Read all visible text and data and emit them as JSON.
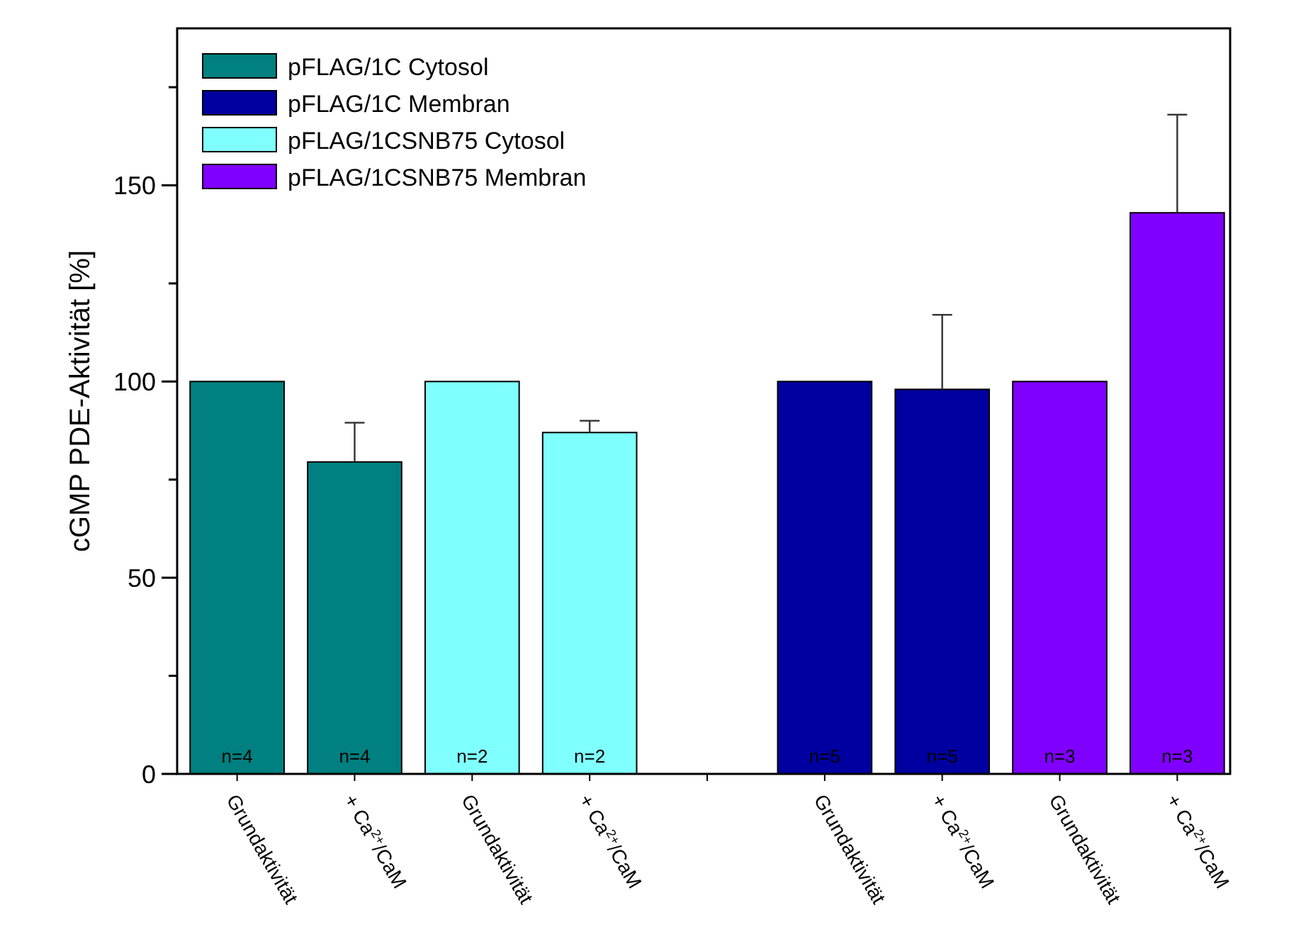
{
  "chart_data": {
    "type": "bar",
    "ylabel": "cGMP PDE-Aktivität [%]",
    "categories": [
      "Grundaktivität",
      "+ Ca$^{2+}$/CaM",
      "Grundaktivität",
      "+ Ca$^{2+}$/CaM",
      null,
      "Grundaktivität",
      "+ Ca$^{2+}$/CaM",
      "Grundaktivität",
      "+ Ca$^{2+}$/CaM"
    ],
    "series": [
      {
        "name": "pFLAG/1C Cytosol",
        "color": "#008080",
        "values": [
          100,
          79.5,
          null,
          null,
          null,
          null,
          null,
          null,
          null
        ],
        "errors": [
          null,
          [
            79.5,
            89.5
          ],
          null,
          null,
          null,
          null,
          null,
          null,
          null
        ]
      },
      {
        "name": "pFLAG/1C Membran",
        "color": "#0000a0",
        "values": [
          null,
          null,
          null,
          null,
          null,
          100,
          98,
          null,
          null
        ],
        "errors": [
          null,
          null,
          null,
          null,
          null,
          null,
          [
            98,
            117
          ],
          null,
          null
        ]
      },
      {
        "name": "pFLAG/1CSNB75 Cytosol",
        "color": "#80ffff",
        "values": [
          null,
          null,
          100,
          87,
          null,
          null,
          null,
          null,
          null
        ],
        "errors": [
          null,
          null,
          null,
          [
            87,
            90
          ],
          null,
          null,
          null,
          null,
          null
        ]
      },
      {
        "name": "pFLAG/1CSNB75 Membran",
        "color": "#8000ff",
        "values": [
          null,
          null,
          null,
          null,
          null,
          null,
          null,
          100,
          143
        ],
        "errors": [
          null,
          null,
          null,
          null,
          null,
          null,
          null,
          null,
          [
            143,
            168
          ]
        ]
      }
    ],
    "ylim": [
      0,
      190
    ],
    "yticks": [
      0,
      {
        "value": 25,
        "label": null
      },
      50,
      {
        "value": 75,
        "label": null
      },
      100,
      {
        "value": 125,
        "label": null
      },
      150,
      {
        "value": 175,
        "label": null
      }
    ],
    "annotations": [
      "n=4",
      "n=4",
      "n=2",
      "n=2",
      "n=5",
      "n=5",
      "n=3",
      "n=3"
    ],
    "legend": "top left",
    "grid": false
  }
}
